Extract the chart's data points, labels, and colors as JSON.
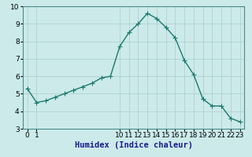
{
  "x": [
    0,
    1,
    2,
    3,
    4,
    5,
    6,
    7,
    8,
    9,
    10,
    11,
    12,
    13,
    14,
    15,
    16,
    17,
    18,
    19,
    20,
    21,
    22,
    23
  ],
  "y": [
    5.3,
    4.5,
    4.6,
    4.8,
    5.0,
    5.2,
    5.4,
    5.6,
    5.9,
    6.0,
    7.7,
    8.5,
    9.0,
    9.6,
    9.3,
    8.8,
    8.2,
    6.9,
    6.1,
    4.7,
    4.3,
    4.3,
    3.6,
    3.4
  ],
  "line_color": "#1a7a6e",
  "marker": "+",
  "bg_color": "#cceaea",
  "grid_color": "#b0d0d0",
  "xlabel": "Humidex (Indice chaleur)",
  "ylim": [
    3,
    10
  ],
  "xlim": [
    -0.5,
    23.5
  ],
  "yticks": [
    3,
    4,
    5,
    6,
    7,
    8,
    9,
    10
  ],
  "xticks": [
    0,
    1,
    10,
    11,
    12,
    13,
    14,
    15,
    16,
    17,
    18,
    19,
    20,
    21,
    22,
    23
  ],
  "xlabel_fontsize": 7.5,
  "tick_fontsize": 6.5,
  "line_width": 1.0,
  "marker_size": 4
}
